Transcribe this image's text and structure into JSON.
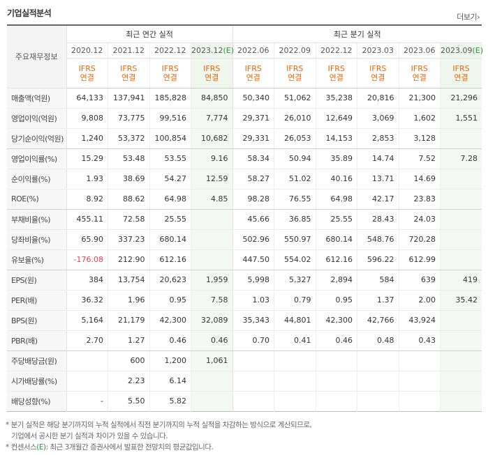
{
  "section_title": "기업실적분석",
  "more_label": "더보기",
  "more_arrow": "›",
  "table": {
    "label_header": "주요재무정보",
    "group_annual": "최근 연간 실적",
    "group_quarterly": "최근 분기 실적",
    "periods": [
      "2020.12",
      "2021.12",
      "2022.12",
      "2023.12",
      "2022.06",
      "2022.09",
      "2022.12",
      "2023.03",
      "2023.06",
      "2023.09"
    ],
    "estimate_marker": "(E)",
    "ifrs_line1": "IFRS",
    "ifrs_line2": "연결",
    "rows": [
      {
        "label": "매출액(억원)",
        "values": [
          "64,133",
          "137,941",
          "185,828",
          "84,850",
          "50,340",
          "51,062",
          "35,238",
          "20,816",
          "21,300",
          "21,296"
        ]
      },
      {
        "label": "영업이익(억원)",
        "values": [
          "9,808",
          "73,775",
          "99,516",
          "7,774",
          "29,371",
          "26,010",
          "12,649",
          "3,069",
          "1,602",
          "1,551"
        ]
      },
      {
        "label": "당기순이익(억원)",
        "values": [
          "1,240",
          "53,372",
          "100,854",
          "10,682",
          "29,331",
          "26,053",
          "14,153",
          "2,853",
          "3,128",
          ""
        ]
      },
      {
        "label": "영업이익률(%)",
        "values": [
          "15.29",
          "53.48",
          "53.55",
          "9.16",
          "58.34",
          "50.94",
          "35.89",
          "14.74",
          "7.52",
          "7.28"
        ]
      },
      {
        "label": "순이익률(%)",
        "values": [
          "1.93",
          "38.69",
          "54.27",
          "12.59",
          "58.27",
          "51.02",
          "40.16",
          "13.71",
          "14.69",
          ""
        ]
      },
      {
        "label": "ROE(%)",
        "values": [
          "8.92",
          "88.62",
          "64.98",
          "4.85",
          "98.28",
          "76.55",
          "64.98",
          "42.17",
          "23.83",
          ""
        ]
      },
      {
        "label": "부채비율(%)",
        "values": [
          "455.11",
          "72.58",
          "25.55",
          "",
          "45.66",
          "36.85",
          "25.55",
          "28.43",
          "24.03",
          ""
        ]
      },
      {
        "label": "당좌비율(%)",
        "values": [
          "65.90",
          "337.23",
          "680.14",
          "",
          "502.96",
          "550.97",
          "680.14",
          "548.76",
          "720.28",
          ""
        ]
      },
      {
        "label": "유보율(%)",
        "values": [
          "-176.08",
          "212.90",
          "612.16",
          "",
          "447.50",
          "554.02",
          "612.16",
          "596.22",
          "612.99",
          ""
        ]
      },
      {
        "label": "EPS(원)",
        "values": [
          "384",
          "13,754",
          "20,623",
          "1,959",
          "5,998",
          "5,327",
          "2,894",
          "584",
          "639",
          "419"
        ]
      },
      {
        "label": "PER(배)",
        "values": [
          "36.32",
          "1.96",
          "0.95",
          "7.58",
          "1.03",
          "0.79",
          "0.95",
          "1.37",
          "2.00",
          "35.42"
        ]
      },
      {
        "label": "BPS(원)",
        "values": [
          "5,164",
          "21,179",
          "42,300",
          "32,089",
          "35,343",
          "44,801",
          "42,300",
          "42,766",
          "43,924",
          ""
        ]
      },
      {
        "label": "PBR(배)",
        "values": [
          "2.70",
          "1.27",
          "0.46",
          "0.46",
          "0.70",
          "0.41",
          "0.46",
          "0.48",
          "0.43",
          ""
        ]
      },
      {
        "label": "주당배당금(원)",
        "values": [
          "",
          "600",
          "1,200",
          "1,061",
          "",
          "",
          "",
          "",
          "",
          ""
        ]
      },
      {
        "label": "시가배당률(%)",
        "values": [
          "",
          "2.23",
          "6.14",
          "",
          "",
          "",
          "",
          "",
          "",
          ""
        ]
      },
      {
        "label": "배당성향(%)",
        "values": [
          "-",
          "5.50",
          "5.82",
          "",
          "",
          "",
          "",
          "",
          "",
          ""
        ]
      }
    ]
  },
  "notes": {
    "line1": "* 분기 실적은 해당 분기까지의 누적 실적에서 직전 분기까지의 누적 실적을 차감하는 방식으로 계산되므로,",
    "line2": "기업에서 공시한 분기 실적과 차이가 있을 수 있습니다.",
    "line3_prefix": "* 컨센서스",
    "line3_suffix": ": 최근 3개월간 증권사에서 발표한 전망치의 평균값입니다."
  },
  "colors": {
    "ifrs": "#e8670b",
    "estimate_marker": "#2f8f3a",
    "negative": "#e8454a",
    "estimate_bg": "#f3f8f3"
  }
}
